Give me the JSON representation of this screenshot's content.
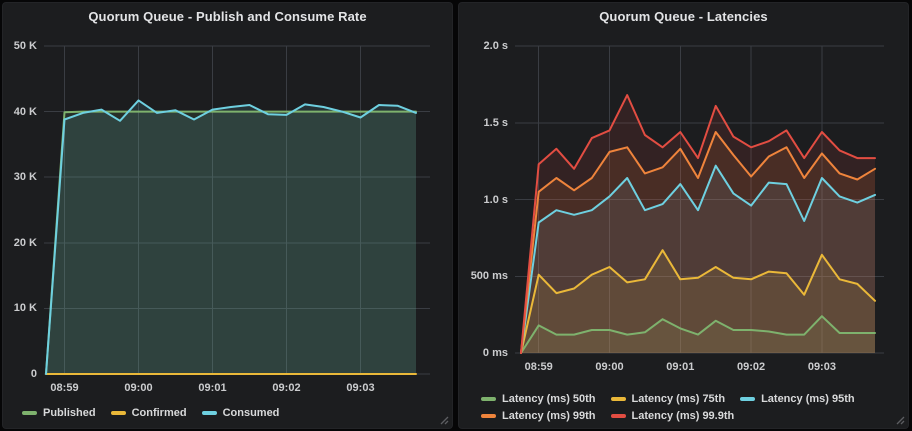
{
  "colors": {
    "panel_background": "#1c1d1f",
    "page_background": "#060607",
    "grid_line": "#3a3d43",
    "axis_text": "#cbccce",
    "legend_text": "#d8d9da",
    "title_text": "#e3e4e6"
  },
  "chart_data": [
    {
      "type": "line",
      "title": "Quorum Queue - Publish and Consume Rate",
      "grid": true,
      "legend_position": "bottom",
      "x_start_time": "08:58:45",
      "step_seconds": 15,
      "x_total_seconds": 300,
      "x_ticks": [
        {
          "s": 15,
          "label": "08:59"
        },
        {
          "s": 75,
          "label": "09:00"
        },
        {
          "s": 135,
          "label": "09:01"
        },
        {
          "s": 195,
          "label": "09:02"
        },
        {
          "s": 255,
          "label": "09:03"
        }
      ],
      "ylim": [
        0,
        50000
      ],
      "y_ticks": [
        {
          "v": 0,
          "label": "0"
        },
        {
          "v": 10000,
          "label": "10 K"
        },
        {
          "v": 20000,
          "label": "20 K"
        },
        {
          "v": 30000,
          "label": "30 K"
        },
        {
          "v": 40000,
          "label": "40 K"
        },
        {
          "v": 50000,
          "label": "50 K"
        }
      ],
      "fill_opacity": 0.12,
      "series": [
        {
          "name": "Published",
          "color": "#7EB26D",
          "values": [
            0,
            39900,
            40000,
            40000,
            40000,
            40000,
            40000,
            40000,
            40000,
            40000,
            40000,
            40000,
            40000,
            40000,
            40000,
            40000,
            40000,
            40000,
            40000,
            40000,
            40000
          ]
        },
        {
          "name": "Confirmed",
          "color": "#EAB839",
          "values": [
            0,
            0,
            0,
            0,
            0,
            0,
            0,
            0,
            0,
            0,
            0,
            0,
            0,
            0,
            0,
            0,
            0,
            0,
            0,
            0,
            0
          ]
        },
        {
          "name": "Consumed",
          "color": "#6ED0E0",
          "values": [
            0,
            38800,
            39800,
            40300,
            38600,
            41700,
            39800,
            40200,
            38800,
            40300,
            40700,
            41000,
            39600,
            39500,
            41100,
            40700,
            40000,
            39100,
            41000,
            40900,
            39800
          ]
        }
      ]
    },
    {
      "type": "line",
      "title": "Quorum Queue - Latencies",
      "grid": true,
      "legend_position": "bottom",
      "x_start_time": "08:58:45",
      "step_seconds": 15,
      "x_total_seconds": 300,
      "x_ticks": [
        {
          "s": 15,
          "label": "08:59"
        },
        {
          "s": 75,
          "label": "09:00"
        },
        {
          "s": 135,
          "label": "09:01"
        },
        {
          "s": 195,
          "label": "09:02"
        },
        {
          "s": 255,
          "label": "09:03"
        }
      ],
      "ylim": [
        0,
        2000
      ],
      "y_ticks": [
        {
          "v": 0,
          "label": "0 ms"
        },
        {
          "v": 500,
          "label": "500 ms"
        },
        {
          "v": 1000,
          "label": "1.0 s"
        },
        {
          "v": 1500,
          "label": "1.5 s"
        },
        {
          "v": 2000,
          "label": "2.0 s"
        }
      ],
      "fill_opacity": 0.12,
      "series": [
        {
          "name": "Latency (ms) 50th",
          "color": "#7EB26D",
          "values": [
            0,
            180,
            120,
            120,
            150,
            150,
            120,
            135,
            220,
            160,
            120,
            210,
            150,
            150,
            140,
            120,
            120,
            240,
            130,
            130,
            130
          ]
        },
        {
          "name": "Latency (ms) 75th",
          "color": "#EAB839",
          "values": [
            0,
            510,
            390,
            420,
            510,
            560,
            460,
            480,
            670,
            480,
            490,
            560,
            490,
            480,
            530,
            520,
            380,
            640,
            480,
            450,
            340
          ]
        },
        {
          "name": "Latency (ms) 95th",
          "color": "#6ED0E0",
          "values": [
            0,
            850,
            930,
            900,
            930,
            1020,
            1140,
            930,
            970,
            1100,
            930,
            1220,
            1040,
            960,
            1110,
            1100,
            860,
            1140,
            1020,
            980,
            1030
          ]
        },
        {
          "name": "Latency (ms) 99th",
          "color": "#EF843C",
          "values": [
            0,
            1050,
            1140,
            1060,
            1140,
            1310,
            1340,
            1170,
            1210,
            1330,
            1140,
            1440,
            1290,
            1150,
            1280,
            1340,
            1140,
            1300,
            1170,
            1130,
            1200
          ]
        },
        {
          "name": "Latency (ms) 99.9th",
          "color": "#E24D42",
          "values": [
            0,
            1230,
            1330,
            1200,
            1400,
            1450,
            1680,
            1420,
            1340,
            1440,
            1270,
            1610,
            1410,
            1340,
            1380,
            1450,
            1270,
            1440,
            1320,
            1270,
            1270
          ]
        }
      ]
    }
  ]
}
